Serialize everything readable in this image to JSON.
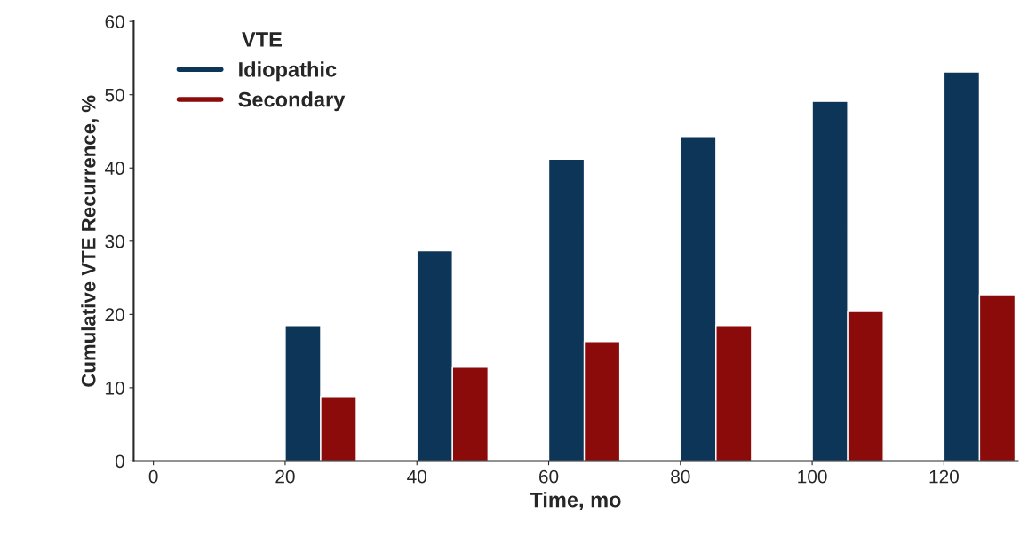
{
  "chart_data": {
    "type": "bar",
    "xlabel": "Time, mo",
    "ylabel": "Cumulative VTE Recurrence, %",
    "legend_title": "VTE",
    "categories": [
      "0",
      "20",
      "40",
      "60",
      "80",
      "100",
      "120"
    ],
    "series": [
      {
        "name": "Idiopathic",
        "color": "#0d3558",
        "values": [
          null,
          18.5,
          28.7,
          41.2,
          44.3,
          49.1,
          53.1
        ]
      },
      {
        "name": "Secondary",
        "color": "#8b0a0a",
        "values": [
          null,
          8.8,
          12.8,
          16.3,
          18.5,
          20.4,
          22.7
        ]
      }
    ],
    "ylim": [
      0,
      60
    ],
    "yticks": [
      0,
      10,
      20,
      30,
      40,
      50,
      60
    ],
    "grid": false,
    "legend": "top left"
  }
}
